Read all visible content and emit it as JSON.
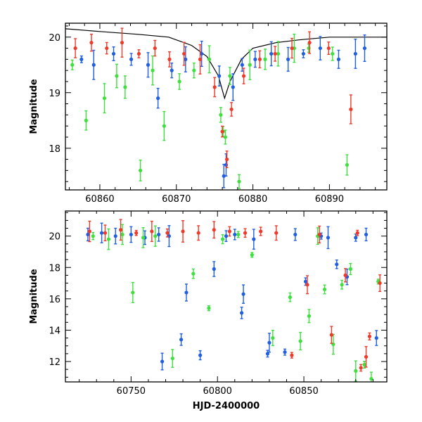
{
  "colors": {
    "blue": "#1f5fe0",
    "green": "#3ee03e",
    "red": "#ef3a2a",
    "model": "#000000"
  },
  "chart_data": [
    {
      "id": "top",
      "type": "scatter",
      "xlim": [
        60855.5,
        60897.5
      ],
      "ylim": [
        20.25,
        17.25
      ],
      "inverted_y": true,
      "xticks": [
        60860,
        60870,
        60880,
        60890
      ],
      "yticks": [
        18,
        19,
        20
      ],
      "xlabel": "",
      "ylabel": "Magnitude",
      "grid": false,
      "series": [
        {
          "color": "blue",
          "x": [
            60857.6,
            60859.2,
            60861.8,
            60864.1,
            60866.3,
            60867.6,
            60869.4,
            60871.2,
            60873.3,
            60875.6,
            60876.2,
            60876.5,
            60877.4,
            60878.6,
            60880.3,
            60882.4,
            60884.6,
            60886.6,
            60888.8,
            60891.2,
            60893.4,
            60894.6
          ],
          "y": [
            19.6,
            19.5,
            19.7,
            19.6,
            19.5,
            18.9,
            19.4,
            19.6,
            19.7,
            19.3,
            17.5,
            17.7,
            19.1,
            19.5,
            19.6,
            19.7,
            19.6,
            19.7,
            19.8,
            19.6,
            19.7,
            19.8
          ]
        },
        {
          "color": "green",
          "x": [
            60856.4,
            60858.2,
            60860.6,
            60862.2,
            60863.3,
            60865.3,
            60866.9,
            60868.4,
            60870.4,
            60872.3,
            60874.3,
            60875.8,
            60876.1,
            60876.4,
            60877.0,
            60878.2,
            60879.6,
            60881.6,
            60883.3,
            60885.4,
            60887.3,
            60890.4,
            60892.3
          ],
          "y": [
            19.5,
            18.5,
            18.9,
            19.3,
            19.1,
            17.6,
            19.4,
            18.4,
            19.2,
            19.4,
            19.6,
            18.6,
            18.3,
            18.2,
            19.3,
            17.4,
            19.5,
            19.6,
            19.7,
            19.8,
            19.8,
            19.7,
            17.7
          ]
        },
        {
          "color": "red",
          "x": [
            60856.8,
            60858.9,
            60860.9,
            60862.9,
            60865.1,
            60867.2,
            60869.1,
            60871.0,
            60873.1,
            60875.0,
            60876.0,
            60876.6,
            60877.2,
            60878.8,
            60880.9,
            60882.9,
            60885.1,
            60887.4,
            60889.9,
            60892.8
          ],
          "y": [
            19.8,
            19.9,
            19.8,
            19.9,
            19.7,
            19.8,
            19.6,
            19.7,
            19.6,
            19.1,
            18.3,
            17.8,
            18.7,
            19.3,
            19.6,
            19.7,
            19.8,
            19.9,
            19.8,
            18.7
          ]
        }
      ],
      "model_curve": {
        "x": [
          60855.5,
          60860,
          60865,
          60869,
          60872,
          60874,
          60875.5,
          60876.3,
          60877,
          60878.5,
          60880,
          60883,
          60886,
          60890,
          60894,
          60897.5
        ],
        "y": [
          20.15,
          20.1,
          20.05,
          20.0,
          19.85,
          19.65,
          19.3,
          18.9,
          19.2,
          19.6,
          19.8,
          19.9,
          19.95,
          20.0,
          20.0,
          20.0
        ]
      }
    },
    {
      "id": "bottom",
      "type": "scatter",
      "xlim": [
        60712,
        60898
      ],
      "ylim": [
        21.6,
        10.7
      ],
      "inverted_y": true,
      "xticks": [
        60750,
        60800,
        60850
      ],
      "yticks": [
        12,
        14,
        16,
        18,
        20
      ],
      "xlabel": "HJD-2400000",
      "ylabel": "Magnitude",
      "grid": false,
      "series": [
        {
          "color": "blue",
          "x": [
            60725,
            60733,
            60741,
            60750,
            60758,
            60766,
            60768,
            60772,
            60779,
            60782,
            60790,
            60798,
            60805,
            60810,
            60814,
            60815,
            60821,
            60829,
            60830,
            60839,
            60845,
            60851,
            60860,
            60864,
            60869,
            60875,
            60880,
            60886,
            60892
          ],
          "y": [
            20.1,
            20.2,
            20.0,
            20.1,
            19.9,
            20.1,
            12.0,
            20.0,
            13.4,
            16.4,
            12.4,
            17.9,
            20.0,
            20.1,
            15.1,
            16.3,
            19.8,
            12.5,
            13.2,
            12.6,
            20.1,
            17.1,
            20.0,
            19.9,
            18.2,
            17.4,
            19.9,
            20.1,
            13.5
          ]
        },
        {
          "color": "green",
          "x": [
            60728,
            60737,
            60745,
            60751,
            60757,
            60764,
            60774,
            60786,
            60795,
            60803,
            60812,
            60820,
            60832,
            60842,
            60848,
            60853,
            60858,
            60862,
            60867,
            60872,
            60877,
            60880,
            60885,
            60889,
            60893
          ],
          "y": [
            20.0,
            19.8,
            20.1,
            16.4,
            19.9,
            20.0,
            12.2,
            17.6,
            15.4,
            19.8,
            20.1,
            18.8,
            13.5,
            16.1,
            13.3,
            14.9,
            20.0,
            16.6,
            13.1,
            16.9,
            17.9,
            11.4,
            11.8,
            10.9,
            17.1
          ]
        },
        {
          "color": "red",
          "x": [
            60726,
            60735,
            60744,
            60753,
            60762,
            60771,
            60780,
            60789,
            60798,
            60807,
            60816,
            60825,
            60834,
            60843,
            60852,
            60859,
            60866,
            60874,
            60881,
            60883,
            60886,
            60888,
            60894
          ],
          "y": [
            20.3,
            20.2,
            20.4,
            20.2,
            20.3,
            20.2,
            20.3,
            20.2,
            20.4,
            20.3,
            20.2,
            20.3,
            20.2,
            12.4,
            16.9,
            20.1,
            13.7,
            17.5,
            20.2,
            11.6,
            12.3,
            13.6,
            17.0
          ]
        }
      ]
    }
  ]
}
